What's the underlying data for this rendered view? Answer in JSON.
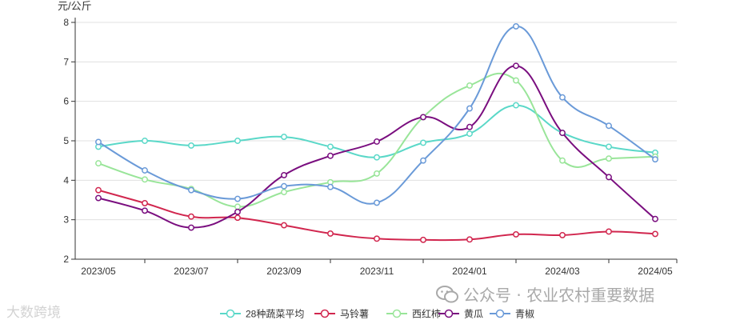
{
  "chart_data": {
    "type": "line",
    "ylabel": "元/公斤",
    "ylim": [
      2,
      8
    ],
    "yticks": [
      2,
      3,
      4,
      5,
      6,
      7,
      8
    ],
    "x": [
      "2023/05",
      "2023/06",
      "2023/07",
      "2023/08",
      "2023/09",
      "2023/10",
      "2023/11",
      "2023/12",
      "2024/01",
      "2024/02",
      "2024/03",
      "2024/04",
      "2024/05"
    ],
    "xtick_labels": [
      "2023/05",
      "2023/07",
      "2023/09",
      "2023/11",
      "2024/01",
      "2024/03",
      "2024/05"
    ],
    "grid": "horizontal",
    "legend_position": "bottom",
    "series": [
      {
        "name": "28种蔬菜平均",
        "color": "#5ad8c8",
        "values": [
          4.85,
          5.0,
          4.88,
          5.0,
          5.1,
          4.85,
          4.58,
          4.95,
          5.18,
          5.9,
          5.2,
          4.85,
          4.7
        ]
      },
      {
        "name": "马铃薯",
        "color": "#d1264e",
        "values": [
          3.75,
          3.42,
          3.08,
          3.05,
          2.86,
          2.65,
          2.52,
          2.49,
          2.5,
          2.63,
          2.61,
          2.7,
          2.64
        ]
      },
      {
        "name": "西红柿",
        "color": "#99e599",
        "values": [
          4.43,
          4.02,
          3.78,
          3.33,
          3.7,
          3.95,
          4.17,
          5.6,
          6.4,
          6.53,
          4.5,
          4.55,
          4.6
        ]
      },
      {
        "name": "黄瓜",
        "color": "#7a0e7f",
        "values": [
          3.55,
          3.23,
          2.8,
          3.2,
          4.13,
          4.62,
          4.98,
          5.6,
          5.35,
          6.9,
          5.2,
          4.08,
          3.02
        ]
      },
      {
        "name": "青椒",
        "color": "#6a9ad8",
        "values": [
          4.97,
          4.25,
          3.75,
          3.53,
          3.85,
          3.83,
          3.43,
          4.5,
          5.82,
          7.9,
          6.1,
          5.38,
          4.53
        ]
      }
    ]
  },
  "watermarks": {
    "left": "大数跨境",
    "right": "公众号 · 农业农村重要数据"
  }
}
